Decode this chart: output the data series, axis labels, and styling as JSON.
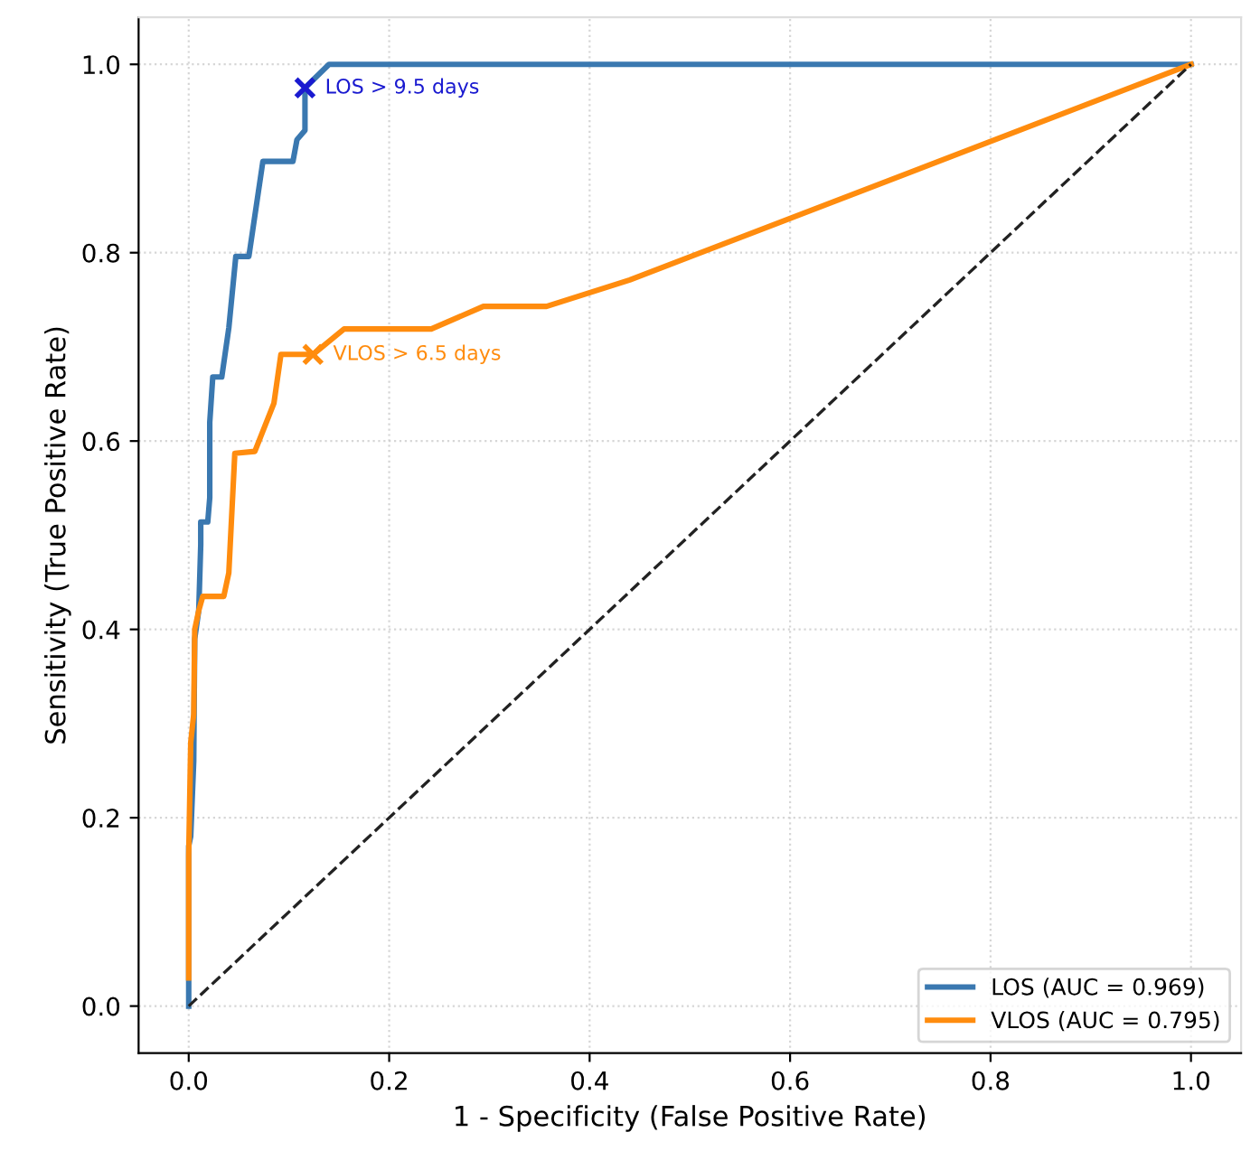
{
  "chart_data": {
    "type": "line",
    "xlabel": "1 - Specificity (False Positive Rate)",
    "ylabel": "Sensitivity (True Positive Rate)",
    "xlim": [
      -0.05,
      1.05
    ],
    "ylim": [
      -0.05,
      1.05
    ],
    "xticks": [
      {
        "value": 0,
        "label": "0.0"
      },
      0.2,
      0.4,
      0.6,
      0.8,
      {
        "value": 1,
        "label": "1.0"
      }
    ],
    "yticks": [
      {
        "value": 0,
        "label": "0.0"
      },
      0.2,
      0.4,
      0.6,
      0.8,
      {
        "value": 1,
        "label": "1.0"
      }
    ],
    "grid": true,
    "legend": "bottom right",
    "series": [
      {
        "name": "LOS (AUC = 0.969)",
        "color": "#3a78b0",
        "line_style": "solid",
        "x": [
          0,
          0,
          0.002,
          0.005,
          0.006,
          0.01,
          0.012,
          0.012,
          0.019,
          0.021,
          0.021,
          0.024,
          0.033,
          0.04,
          0.047,
          0.06,
          0.074,
          0.104,
          0.108,
          0.116,
          0.116,
          0.14,
          1.0
        ],
        "values": [
          0,
          0.17,
          0.18,
          0.26,
          0.39,
          0.42,
          0.49,
          0.514,
          0.514,
          0.54,
          0.62,
          0.668,
          0.668,
          0.72,
          0.796,
          0.796,
          0.897,
          0.897,
          0.92,
          0.93,
          0.975,
          1.0,
          1.0
        ]
      },
      {
        "name": "VLOS (AUC = 0.795)",
        "color": "#ff8c0e",
        "line_style": "solid",
        "x": [
          0,
          0,
          0.002,
          0.005,
          0.006,
          0.01,
          0.014,
          0.035,
          0.04,
          0.046,
          0.066,
          0.085,
          0.092,
          0.124,
          0.155,
          0.242,
          0.294,
          0.357,
          0.44,
          1.0
        ],
        "values": [
          0.03,
          0.16,
          0.28,
          0.31,
          0.4,
          0.42,
          0.435,
          0.435,
          0.46,
          0.587,
          0.589,
          0.64,
          0.692,
          0.692,
          0.719,
          0.719,
          0.743,
          0.743,
          0.771,
          1.0
        ]
      },
      {
        "color": "#222222",
        "line_style": "dashed",
        "x": [
          0,
          1
        ],
        "values": [
          0,
          1
        ]
      },
      {
        "type": "scatter",
        "color": "#1a1ad0",
        "marker": "cross",
        "x": [
          0.116
        ],
        "values": [
          0.975
        ]
      },
      {
        "type": "scatter",
        "color": "#ff8c0e",
        "marker": "cross",
        "x": [
          0.124
        ],
        "values": [
          0.692
        ]
      }
    ],
    "annotations": [
      {
        "text": "LOS > 9.5 days",
        "x": 0.116,
        "y": 0.975
      },
      {
        "text": "VLOS > 6.5 days",
        "x": 0.124,
        "y": 0.692
      }
    ]
  }
}
